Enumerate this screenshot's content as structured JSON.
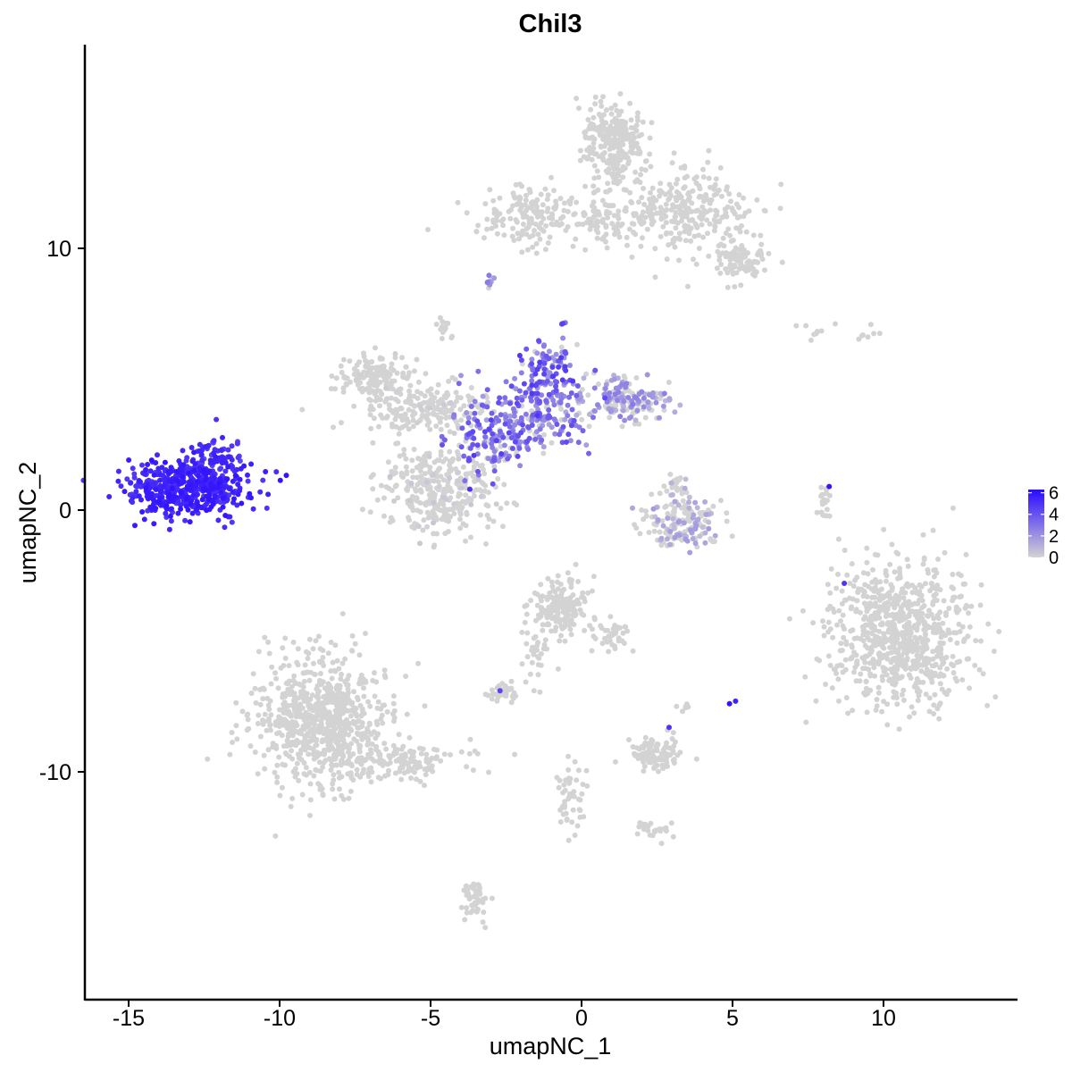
{
  "chart_data": {
    "type": "scatter",
    "title": "Chil3",
    "xlabel": "umapNC_1",
    "ylabel": "umapNC_2",
    "xlim": [
      -16.5,
      14.5
    ],
    "ylim": [
      -18.5,
      17.5
    ],
    "x_ticks": [
      -15,
      -10,
      -5,
      0,
      5,
      10
    ],
    "y_ticks": [
      -10,
      0,
      10
    ],
    "x_tick_labels": [
      "-15",
      "-10",
      "-5",
      "0",
      "5",
      "10"
    ],
    "y_tick_labels": [
      "-10",
      "0",
      "10"
    ],
    "grid": false,
    "color_scale": {
      "low_color": "#d3d3d3",
      "high_color": "#2a0aff",
      "min": 0,
      "max": 6.3,
      "ticks": [
        0,
        2,
        4,
        6
      ],
      "tick_labels": [
        "0",
        "2",
        "4",
        "6"
      ],
      "placement": "right"
    },
    "clusters": [
      {
        "cx": -13.0,
        "cy": 0.9,
        "sx": 1.0,
        "sy": 0.55,
        "n": 520,
        "expr": 6.0
      },
      {
        "cx": -12.0,
        "cy": 2.1,
        "sx": 0.4,
        "sy": 0.35,
        "n": 60,
        "expr": 5.6
      },
      {
        "cx": -4.8,
        "cy": 0.7,
        "sx": 0.95,
        "sy": 0.9,
        "n": 340,
        "expr": 0.3
      },
      {
        "cx": -5.2,
        "cy": 3.9,
        "sx": 1.0,
        "sy": 0.45,
        "n": 180,
        "expr": 0.2
      },
      {
        "cx": -6.9,
        "cy": 5.1,
        "sx": 0.6,
        "sy": 0.45,
        "n": 150,
        "expr": 0.1
      },
      {
        "cx": -1.8,
        "cy": 3.6,
        "sx": 1.2,
        "sy": 0.7,
        "n": 230,
        "expr": 2.9
      },
      {
        "cx": -1.1,
        "cy": 5.3,
        "sx": 0.45,
        "sy": 0.7,
        "n": 110,
        "expr": 3.3
      },
      {
        "cx": 1.6,
        "cy": 4.2,
        "sx": 0.7,
        "sy": 0.45,
        "n": 160,
        "expr": 1.8
      },
      {
        "cx": -3.0,
        "cy": 2.4,
        "sx": 0.55,
        "sy": 0.55,
        "n": 80,
        "expr": 3.2
      },
      {
        "cx": -4.6,
        "cy": 6.9,
        "sx": 0.15,
        "sy": 0.25,
        "n": 15,
        "expr": 0.1
      },
      {
        "cx": -1.6,
        "cy": 11.3,
        "sx": 0.9,
        "sy": 0.6,
        "n": 160,
        "expr": 0.1
      },
      {
        "cx": 1.1,
        "cy": 14.0,
        "sx": 0.5,
        "sy": 0.85,
        "n": 280,
        "expr": 0.0
      },
      {
        "cx": 3.4,
        "cy": 11.4,
        "sx": 1.1,
        "sy": 0.8,
        "n": 300,
        "expr": 0.0
      },
      {
        "cx": 5.3,
        "cy": 9.5,
        "sx": 0.5,
        "sy": 0.35,
        "n": 100,
        "expr": 0.0
      },
      {
        "cx": 0.7,
        "cy": 11.1,
        "sx": 0.45,
        "sy": 0.4,
        "n": 60,
        "expr": 0.0
      },
      {
        "cx": -3.0,
        "cy": 8.7,
        "sx": 0.1,
        "sy": 0.2,
        "n": 10,
        "expr": 2.5
      },
      {
        "cx": 3.3,
        "cy": -0.5,
        "sx": 0.75,
        "sy": 0.45,
        "n": 160,
        "expr": 1.2
      },
      {
        "cx": 3.1,
        "cy": 0.8,
        "sx": 0.2,
        "sy": 0.3,
        "n": 25,
        "expr": 0.9
      },
      {
        "cx": 10.6,
        "cy": -4.8,
        "sx": 1.15,
        "sy": 1.35,
        "n": 780,
        "expr": 0.0
      },
      {
        "cx": 8.0,
        "cy": 0.2,
        "sx": 0.12,
        "sy": 0.4,
        "n": 22,
        "expr": 0.1
      },
      {
        "cx": -8.6,
        "cy": -8.0,
        "sx": 1.1,
        "sy": 1.25,
        "n": 780,
        "expr": 0.0
      },
      {
        "cx": -6.0,
        "cy": -9.6,
        "sx": 1.0,
        "sy": 0.35,
        "n": 130,
        "expr": 0.0
      },
      {
        "cx": -0.7,
        "cy": -3.8,
        "sx": 0.45,
        "sy": 0.55,
        "n": 180,
        "expr": 0.0
      },
      {
        "cx": 1.0,
        "cy": -4.8,
        "sx": 0.3,
        "sy": 0.35,
        "n": 40,
        "expr": 0.0
      },
      {
        "cx": -1.5,
        "cy": -5.5,
        "sx": 0.25,
        "sy": 0.5,
        "n": 30,
        "expr": 0.0
      },
      {
        "cx": -2.6,
        "cy": -7.0,
        "sx": 0.3,
        "sy": 0.2,
        "n": 40,
        "expr": 0.1
      },
      {
        "cx": 2.4,
        "cy": -9.3,
        "sx": 0.4,
        "sy": 0.35,
        "n": 100,
        "expr": 0.0
      },
      {
        "cx": -0.4,
        "cy": -11.1,
        "sx": 0.25,
        "sy": 0.7,
        "n": 50,
        "expr": 0.0
      },
      {
        "cx": 2.3,
        "cy": -12.2,
        "sx": 0.3,
        "sy": 0.2,
        "n": 25,
        "expr": 0.0
      },
      {
        "cx": -3.6,
        "cy": -14.9,
        "sx": 0.2,
        "sy": 0.4,
        "n": 50,
        "expr": 0.0
      },
      {
        "cx": 3.4,
        "cy": -7.6,
        "sx": 0.1,
        "sy": 0.1,
        "n": 6,
        "expr": 0.0
      },
      {
        "cx": 7.8,
        "cy": 6.8,
        "sx": 0.5,
        "sy": 0.15,
        "n": 8,
        "expr": 0.0
      },
      {
        "cx": 9.6,
        "cy": 6.7,
        "sx": 0.3,
        "sy": 0.15,
        "n": 7,
        "expr": 0.0
      }
    ],
    "highlights": [
      {
        "x": 4.9,
        "y": -7.4,
        "expr": 6.0
      },
      {
        "x": 5.1,
        "y": -7.3,
        "expr": 5.5
      },
      {
        "x": 2.9,
        "y": -8.3,
        "expr": 5.0
      },
      {
        "x": -2.7,
        "y": -6.9,
        "expr": 4.5
      },
      {
        "x": 8.2,
        "y": 0.9,
        "expr": 6.0
      },
      {
        "x": 8.7,
        "y": -2.8,
        "expr": 5.0
      },
      {
        "x": -3.7,
        "y": 0.8,
        "expr": 5.0
      }
    ]
  }
}
